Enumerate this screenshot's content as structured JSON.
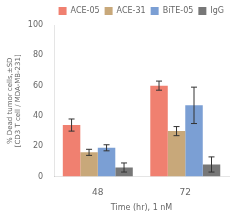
{
  "chart_data": {
    "type": "bar",
    "categories": [
      "48",
      "72"
    ],
    "series": [
      {
        "name": "ACE-05",
        "color": "#F08070",
        "values": [
          34,
          60
        ],
        "errors": [
          4,
          3
        ]
      },
      {
        "name": "ACE-31",
        "color": "#C8A87A",
        "values": [
          16,
          30
        ],
        "errors": [
          2,
          3
        ]
      },
      {
        "name": "BiTE-05",
        "color": "#7B9FD4",
        "values": [
          19,
          47
        ],
        "errors": [
          2,
          12
        ]
      },
      {
        "name": "IgG",
        "color": "#777777",
        "values": [
          6,
          8
        ],
        "errors": [
          3,
          5
        ]
      }
    ],
    "xlabel": "Time (hr), 1 nM",
    "ylabel": "% Dead tumor cells,±SD\n[CD3 T cell / MDA-MB-231]",
    "ylim": [
      0,
      100
    ],
    "yticks": [
      0,
      20,
      40,
      60,
      80,
      100
    ],
    "grid": false,
    "legend": "upper right"
  }
}
